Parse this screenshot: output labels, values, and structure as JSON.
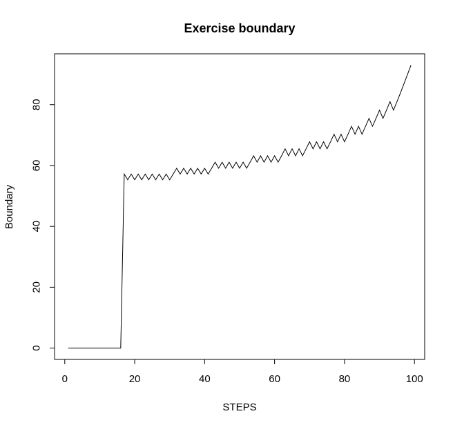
{
  "chart_data": {
    "type": "line",
    "title": "Exercise boundary",
    "xlabel": "STEPS",
    "ylabel": "Boundary",
    "xlim": [
      1,
      99
    ],
    "ylim": [
      0,
      93
    ],
    "x_ticks": [
      0,
      20,
      40,
      60,
      80,
      100
    ],
    "y_ticks": [
      0,
      20,
      40,
      60,
      80
    ],
    "grid": false,
    "series": [
      {
        "color": "#000000",
        "x": [
          1,
          2,
          3,
          4,
          5,
          6,
          7,
          8,
          9,
          10,
          11,
          12,
          13,
          14,
          15,
          16,
          17,
          18,
          19,
          20,
          21,
          22,
          23,
          24,
          25,
          26,
          27,
          28,
          29,
          30,
          31,
          32,
          33,
          34,
          35,
          36,
          37,
          38,
          39,
          40,
          41,
          42,
          43,
          44,
          45,
          46,
          47,
          48,
          49,
          50,
          51,
          52,
          53,
          54,
          55,
          56,
          57,
          58,
          59,
          60,
          61,
          62,
          63,
          64,
          65,
          66,
          67,
          68,
          69,
          70,
          71,
          72,
          73,
          74,
          75,
          76,
          77,
          78,
          79,
          80,
          81,
          82,
          83,
          84,
          85,
          86,
          87,
          88,
          89,
          90,
          91,
          92,
          93,
          94,
          95,
          96,
          97,
          98,
          99
        ],
        "y": [
          0,
          0,
          0,
          0,
          0,
          0,
          0,
          0,
          0,
          0,
          0,
          0,
          0,
          0,
          0,
          0,
          57.2,
          55.3,
          57.2,
          55.3,
          57.2,
          55.3,
          57.2,
          55.3,
          57.2,
          55.3,
          57.2,
          55.3,
          57.2,
          55.3,
          57.2,
          59.1,
          57.2,
          59.1,
          57.2,
          59.1,
          57.2,
          59.1,
          57.2,
          59.1,
          57.2,
          59.1,
          61.1,
          59.1,
          61.1,
          59.1,
          61.1,
          59.1,
          61.1,
          59.1,
          61.1,
          59.1,
          61.1,
          63.2,
          61.1,
          63.2,
          61.1,
          63.2,
          61.1,
          63.2,
          61.1,
          63.2,
          65.5,
          63.2,
          65.5,
          63.2,
          65.5,
          63.2,
          65.5,
          67.8,
          65.5,
          67.8,
          65.5,
          67.8,
          65.5,
          67.8,
          70.3,
          67.8,
          70.3,
          67.8,
          70.3,
          72.9,
          70.3,
          72.9,
          70.3,
          72.9,
          75.5,
          72.9,
          75.5,
          78.2,
          75.5,
          78.2,
          81.0,
          78.2,
          81.0,
          83.9,
          86.9,
          89.9,
          93.0
        ]
      }
    ]
  }
}
